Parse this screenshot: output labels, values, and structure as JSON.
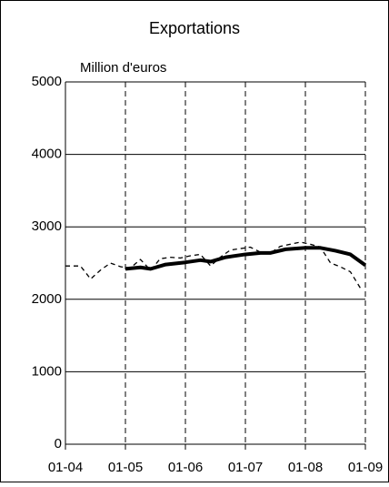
{
  "chart_data": {
    "type": "line",
    "title": "Exportations",
    "ylabel": "Million d'euros",
    "xlim": [
      2004,
      2009
    ],
    "xticks": [
      {
        "value": 2004,
        "label": "01-04"
      },
      {
        "value": 2005,
        "label": "01-05"
      },
      {
        "value": 2006,
        "label": "01-06"
      },
      {
        "value": 2007,
        "label": "01-07"
      },
      {
        "value": 2008,
        "label": "01-08"
      },
      {
        "value": 2009,
        "label": "01-09"
      }
    ],
    "ylim": [
      0,
      5000
    ],
    "yticks": [
      0,
      1000,
      2000,
      3000,
      4000,
      5000
    ],
    "grid": true,
    "series": [
      {
        "color": "#000000",
        "dashed": true,
        "width": 1.3,
        "x": [
          2004.0,
          2004.25,
          2004.42,
          2004.58,
          2004.75,
          2004.92,
          2005.08,
          2005.25,
          2005.42,
          2005.58,
          2005.75,
          2005.92,
          2006.08,
          2006.25,
          2006.42,
          2006.58,
          2006.75,
          2006.92,
          2007.08,
          2007.25,
          2007.42,
          2007.58,
          2007.75,
          2007.92,
          2008.08,
          2008.25,
          2008.42,
          2008.58,
          2008.75,
          2008.92
        ],
        "values": [
          2460,
          2460,
          2280,
          2400,
          2500,
          2450,
          2430,
          2550,
          2400,
          2560,
          2580,
          2570,
          2600,
          2620,
          2460,
          2580,
          2680,
          2700,
          2720,
          2650,
          2640,
          2730,
          2760,
          2790,
          2760,
          2720,
          2500,
          2450,
          2380,
          2150
        ]
      },
      {
        "color": "#000000",
        "dashed": false,
        "width": 4,
        "x": [
          2005.0,
          2005.25,
          2005.42,
          2005.67,
          2006.0,
          2006.25,
          2006.42,
          2006.67,
          2007.0,
          2007.25,
          2007.42,
          2007.67,
          2008.0,
          2008.25,
          2008.5,
          2008.75,
          2009.0
        ],
        "values": [
          2420,
          2440,
          2420,
          2480,
          2510,
          2540,
          2520,
          2580,
          2620,
          2640,
          2640,
          2690,
          2710,
          2710,
          2670,
          2620,
          2470
        ]
      }
    ]
  }
}
